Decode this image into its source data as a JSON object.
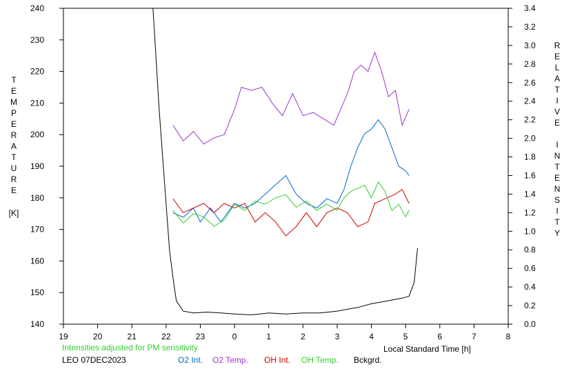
{
  "chart_data": {
    "type": "line",
    "title": "",
    "xlabel": "Local Standard Time [h]",
    "ylabel_left": [
      "T",
      "E",
      "M",
      "P",
      "E",
      "R",
      "A",
      "T",
      "U",
      "R",
      "E"
    ],
    "ylabel_left_unit": "[K]",
    "ylabel_right": [
      "R",
      "E",
      "L",
      "A",
      "T",
      "I",
      "V",
      "E",
      "",
      "I",
      "N",
      "T",
      "E",
      "N",
      "S",
      "I",
      "T",
      "Y"
    ],
    "xlim": [
      19,
      32
    ],
    "x_ticks": [
      19,
      20,
      21,
      22,
      23,
      24,
      25,
      26,
      27,
      28,
      29,
      30,
      31,
      32
    ],
    "x_tick_labels": [
      "19",
      "20",
      "21",
      "22",
      "23",
      "0",
      "1",
      "2",
      "3",
      "4",
      "5",
      "6",
      "7",
      "8"
    ],
    "ylim_left": [
      140,
      240
    ],
    "y_ticks_left": [
      140,
      150,
      160,
      170,
      180,
      190,
      200,
      210,
      220,
      230,
      240
    ],
    "ylim_right": [
      0.0,
      3.4
    ],
    "y_ticks_right": [
      "0.0",
      "0.2",
      "0.4",
      "0.6",
      "0.8",
      "1.0",
      "1.2",
      "1.4",
      "1.6",
      "1.8",
      "2.0",
      "2.2",
      "2.4",
      "2.6",
      "2.8",
      "3.0",
      "3.2",
      "3.4"
    ],
    "grid": false,
    "series": [
      {
        "name": "O2 Int.",
        "color": "#0066cc",
        "axis": "right",
        "x": [
          22.2,
          22.5,
          22.8,
          23.0,
          23.3,
          23.6,
          24.0,
          24.3,
          24.6,
          24.9,
          25.2,
          25.5,
          25.8,
          26.1,
          26.4,
          26.7,
          27.0,
          27.2,
          27.4,
          27.6,
          27.8,
          28.0,
          28.2,
          28.4,
          28.6,
          28.8,
          29.0,
          29.1
        ],
        "y": [
          1.2,
          1.15,
          1.25,
          1.1,
          1.25,
          1.1,
          1.3,
          1.25,
          1.3,
          1.4,
          1.5,
          1.6,
          1.4,
          1.3,
          1.25,
          1.35,
          1.3,
          1.45,
          1.7,
          1.9,
          2.05,
          2.1,
          2.2,
          2.1,
          1.9,
          1.7,
          1.65,
          1.6
        ]
      },
      {
        "name": "O2 Temp.",
        "color": "#9933cc",
        "axis": "left",
        "x": [
          22.2,
          22.5,
          22.8,
          23.1,
          23.4,
          23.7,
          24.0,
          24.2,
          24.5,
          24.8,
          25.1,
          25.4,
          25.7,
          26.0,
          26.3,
          26.6,
          26.9,
          27.1,
          27.3,
          27.5,
          27.7,
          27.9,
          28.1,
          28.3,
          28.5,
          28.7,
          28.9,
          29.1
        ],
        "y": [
          203,
          198,
          201,
          197,
          199,
          200,
          208,
          215,
          214,
          215,
          210,
          206,
          213,
          206,
          207,
          205,
          203,
          208,
          213,
          220,
          222,
          220,
          226,
          220,
          212,
          214,
          203,
          208
        ]
      },
      {
        "name": "OH Int.",
        "color": "#cc0000",
        "axis": "right",
        "x": [
          22.2,
          22.5,
          22.8,
          23.1,
          23.4,
          23.7,
          24.0,
          24.3,
          24.6,
          24.9,
          25.2,
          25.5,
          25.8,
          26.1,
          26.4,
          26.7,
          27.0,
          27.3,
          27.6,
          27.9,
          28.1,
          28.4,
          28.7,
          28.9,
          29.1
        ],
        "y": [
          1.35,
          1.2,
          1.25,
          1.3,
          1.2,
          1.3,
          1.25,
          1.3,
          1.1,
          1.2,
          1.1,
          0.95,
          1.05,
          1.2,
          1.05,
          1.2,
          1.25,
          1.2,
          1.05,
          1.1,
          1.3,
          1.35,
          1.4,
          1.45,
          1.3
        ]
      },
      {
        "name": "OH Temp.",
        "color": "#33cc33",
        "axis": "left",
        "x": [
          22.2,
          22.5,
          22.8,
          23.1,
          23.4,
          23.7,
          24.0,
          24.3,
          24.6,
          24.9,
          25.2,
          25.5,
          25.8,
          26.1,
          26.4,
          26.7,
          27.0,
          27.2,
          27.4,
          27.6,
          27.8,
          28.0,
          28.2,
          28.4,
          28.6,
          28.8,
          29.0,
          29.1
        ],
        "y": [
          176,
          172,
          175,
          174,
          171,
          173,
          178,
          176,
          179,
          178,
          180,
          181,
          177,
          179,
          176,
          178,
          176,
          180,
          182,
          183,
          184,
          180,
          185,
          182,
          176,
          178,
          174,
          176
        ]
      },
      {
        "name": "Bckgrd.",
        "color": "#000000",
        "axis": "right",
        "x": [
          21.6,
          21.8,
          22.0,
          22.1,
          22.2,
          22.3,
          22.5,
          22.8,
          23.2,
          23.6,
          24.0,
          24.5,
          25.0,
          25.5,
          26.0,
          26.5,
          27.0,
          27.3,
          27.6,
          28.0,
          28.3,
          28.6,
          28.9,
          29.1,
          29.25,
          29.35
        ],
        "y": [
          3.5,
          2.3,
          1.3,
          0.8,
          0.5,
          0.25,
          0.14,
          0.12,
          0.13,
          0.12,
          0.11,
          0.1,
          0.12,
          0.11,
          0.12,
          0.12,
          0.14,
          0.16,
          0.18,
          0.22,
          0.24,
          0.26,
          0.28,
          0.3,
          0.45,
          0.82
        ]
      }
    ],
    "legend_placement": "bottom"
  },
  "footer": {
    "note": "Intensities adjusted for PM sensitivity",
    "station": "LEO 07DEC2023",
    "legend": [
      {
        "label": "O2 Int.",
        "color": "#0066cc"
      },
      {
        "label": "O2 Temp.",
        "color": "#9933cc"
      },
      {
        "label": "OH Int.",
        "color": "#cc0000"
      },
      {
        "label": "OH Temp.",
        "color": "#33cc33"
      },
      {
        "label": "Bckgrd.",
        "color": "#000000"
      }
    ],
    "note_color": "#33cc33"
  }
}
